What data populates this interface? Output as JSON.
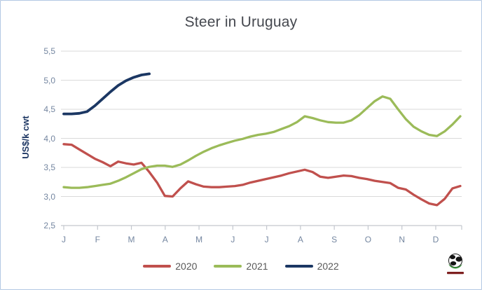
{
  "window": {
    "background": "#ffffff",
    "border_color": "#b2c8e4"
  },
  "colors": {
    "grid": "#dadada",
    "axis": "#c3c7ce",
    "tick_text": "#7486a0",
    "title_text": "#45484f",
    "legend_text": "#595959",
    "ylabel_text": "#1f3864"
  },
  "footer": {
    "logo_icon": "globe-logo"
  },
  "chart_data": {
    "type": "line",
    "title": "Steer in Uruguay",
    "ylabel": "US$/k cwt",
    "xlabel": "",
    "ylim": [
      2.5,
      5.5
    ],
    "grid": true,
    "legend_position": "bottom",
    "x_axis": {
      "unit": "week",
      "month_labels": [
        "J",
        "F",
        "M",
        "A",
        "M",
        "J",
        "J",
        "A",
        "S",
        "O",
        "N",
        "D"
      ]
    },
    "y_ticks": [
      {
        "value": 5.5,
        "label": "5,5"
      },
      {
        "value": 5.0,
        "label": "5,0"
      },
      {
        "value": 4.5,
        "label": "4,5"
      },
      {
        "value": 4.0,
        "label": "4,0"
      },
      {
        "value": 3.5,
        "label": "3,5"
      },
      {
        "value": 3.0,
        "label": "3,0"
      },
      {
        "value": 2.5,
        "label": "2,5"
      }
    ],
    "series": [
      {
        "name": "2020",
        "color": "#c0504d",
        "values": [
          3.9,
          3.89,
          3.81,
          3.73,
          3.65,
          3.59,
          3.52,
          3.6,
          3.57,
          3.55,
          3.58,
          3.42,
          3.24,
          3.01,
          3.0,
          3.14,
          3.26,
          3.21,
          3.17,
          3.16,
          3.16,
          3.17,
          3.18,
          3.2,
          3.24,
          3.27,
          3.3,
          3.33,
          3.36,
          3.4,
          3.43,
          3.46,
          3.42,
          3.34,
          3.32,
          3.34,
          3.36,
          3.35,
          3.32,
          3.3,
          3.27,
          3.25,
          3.23,
          3.15,
          3.12,
          3.03,
          2.95,
          2.88,
          2.85,
          2.96,
          3.14,
          3.18
        ]
      },
      {
        "name": "2021",
        "color": "#9bbb59",
        "values": [
          3.16,
          3.15,
          3.15,
          3.16,
          3.18,
          3.2,
          3.22,
          3.27,
          3.33,
          3.4,
          3.47,
          3.51,
          3.53,
          3.53,
          3.51,
          3.55,
          3.62,
          3.7,
          3.77,
          3.83,
          3.88,
          3.92,
          3.96,
          3.99,
          4.03,
          4.06,
          4.08,
          4.11,
          4.16,
          4.21,
          4.28,
          4.38,
          4.35,
          4.31,
          4.28,
          4.27,
          4.27,
          4.31,
          4.4,
          4.52,
          4.64,
          4.72,
          4.68,
          4.5,
          4.33,
          4.2,
          4.12,
          4.06,
          4.04,
          4.12,
          4.24,
          4.38
        ]
      },
      {
        "name": "2022",
        "color": "#1b3763",
        "values": [
          4.42,
          4.42,
          4.43,
          4.46,
          4.56,
          4.68,
          4.8,
          4.91,
          4.99,
          5.05,
          5.09,
          5.11
        ]
      }
    ]
  }
}
